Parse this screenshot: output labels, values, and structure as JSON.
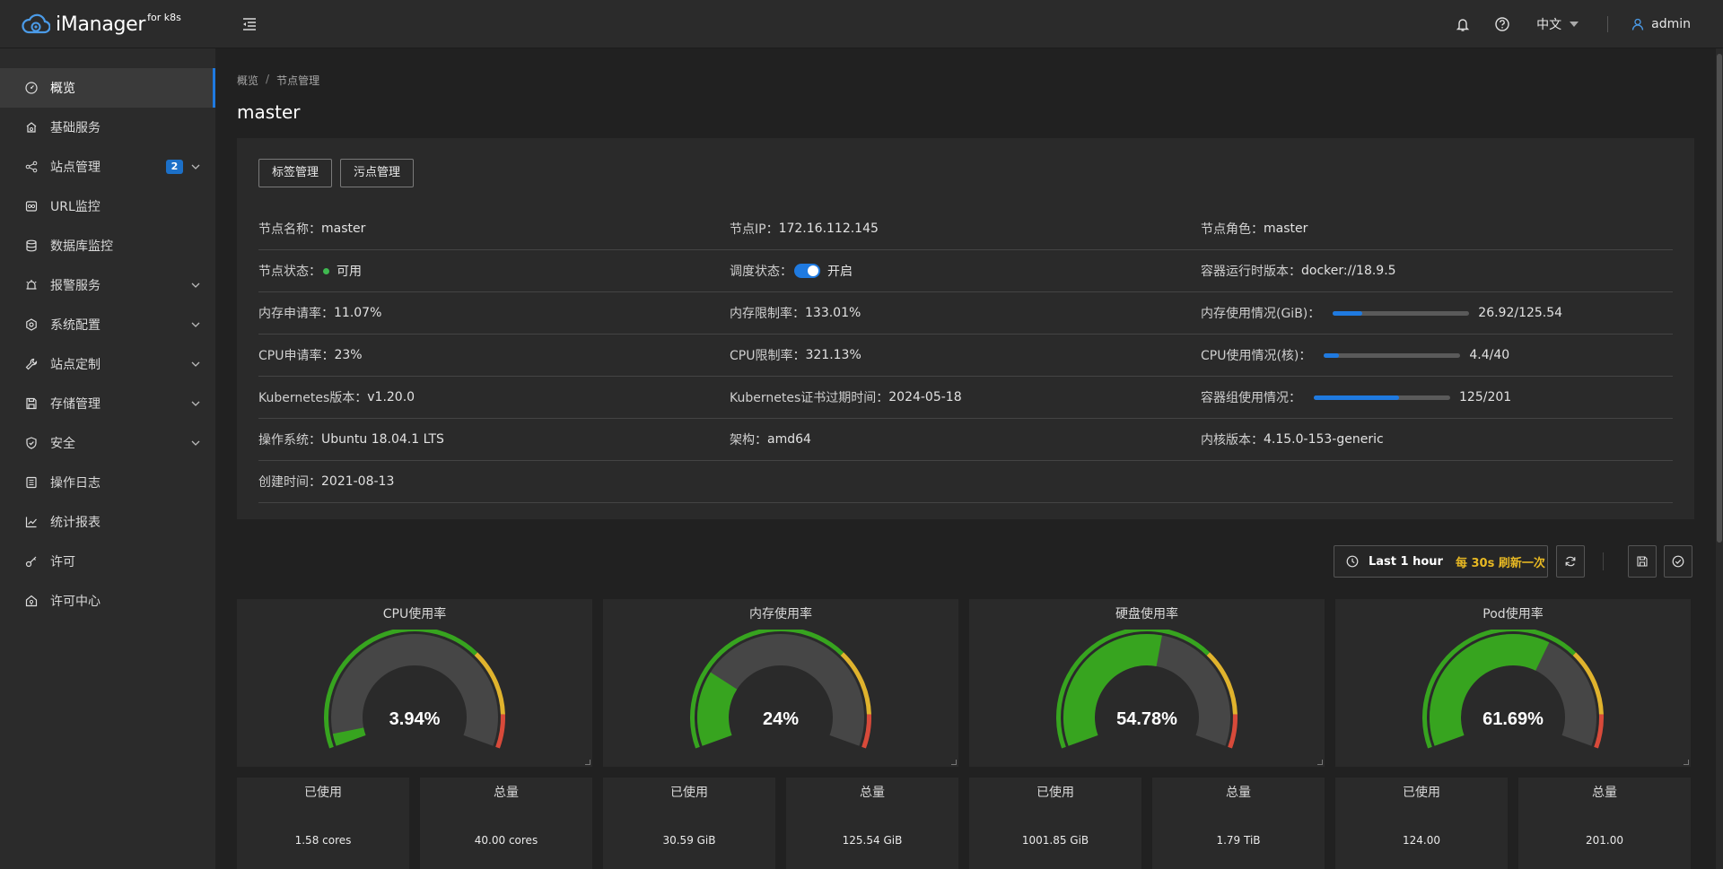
{
  "app": {
    "name": "iManager",
    "name_sup": "for k8s"
  },
  "header": {
    "language": "中文",
    "user": "admin"
  },
  "sidebar": {
    "items": [
      {
        "label": "概览",
        "icon": "dashboard-icon"
      },
      {
        "label": "基础服务",
        "icon": "service-icon"
      },
      {
        "label": "站点管理",
        "icon": "site-icon",
        "badge": "2"
      },
      {
        "label": "URL监控",
        "icon": "url-icon"
      },
      {
        "label": "数据库监控",
        "icon": "database-icon"
      },
      {
        "label": "报警服务",
        "icon": "alarm-icon"
      },
      {
        "label": "系统配置",
        "icon": "settings-icon"
      },
      {
        "label": "站点定制",
        "icon": "tool-icon"
      },
      {
        "label": "存储管理",
        "icon": "storage-icon"
      },
      {
        "label": "安全",
        "icon": "shield-icon"
      },
      {
        "label": "操作日志",
        "icon": "log-icon"
      },
      {
        "label": "统计报表",
        "icon": "chart-icon"
      },
      {
        "label": "许可",
        "icon": "key-icon"
      },
      {
        "label": "许可中心",
        "icon": "license-center-icon"
      }
    ]
  },
  "breadcrumb": {
    "home": "概览",
    "sep": "/",
    "current": "节点管理"
  },
  "page": {
    "title": "master"
  },
  "buttons": {
    "labels": "标签管理",
    "taints": "污点管理"
  },
  "info": {
    "node_name": {
      "k": "节点名称：",
      "v": "master"
    },
    "node_ip": {
      "k": "节点IP：",
      "v": "172.16.112.145"
    },
    "node_role": {
      "k": "节点角色：",
      "v": "master"
    },
    "node_status": {
      "k": "节点状态：",
      "v": "可用"
    },
    "schedule_status": {
      "k": "调度状态：",
      "v": "开启"
    },
    "runtime": {
      "k": "容器运行时版本：",
      "v": "docker://18.9.5"
    },
    "mem_request": {
      "k": "内存申请率：",
      "v": "11.07%"
    },
    "mem_limit": {
      "k": "内存限制率：",
      "v": "133.01%"
    },
    "mem_usage": {
      "k": "内存使用情况(GiB)：",
      "v": "26.92/125.54",
      "fraction": 0.2144
    },
    "cpu_request": {
      "k": "CPU申请率：",
      "v": "23%"
    },
    "cpu_limit": {
      "k": "CPU限制率：",
      "v": "321.13%"
    },
    "cpu_usage": {
      "k": "CPU使用情况(核)：",
      "v": "4.4/40",
      "fraction": 0.11
    },
    "k8s_version": {
      "k": "Kubernetes版本：",
      "v": "v1.20.0"
    },
    "cert_expiry": {
      "k": "Kubernetes证书过期时间：",
      "v": "2024-05-18"
    },
    "pod_usage": {
      "k": "容器组使用情况：",
      "v": "125/201",
      "fraction": 0.6219
    },
    "os": {
      "k": "操作系统：",
      "v": "Ubuntu 18.04.1 LTS"
    },
    "arch": {
      "k": "架构：",
      "v": "amd64"
    },
    "kernel": {
      "k": "内核版本：",
      "v": "4.15.0-153-generic"
    },
    "created": {
      "k": "创建时间：",
      "v": "2021-08-13"
    }
  },
  "toolbar": {
    "time_range": "Last 1 hour",
    "refresh": "每 30s 刷新一次"
  },
  "gauges": [
    {
      "title": "CPU使用率",
      "value": 3.94,
      "label": "3.94%"
    },
    {
      "title": "内存使用率",
      "value": 24,
      "label": "24%"
    },
    {
      "title": "硬盘使用率",
      "value": 54.78,
      "label": "54.78%"
    },
    {
      "title": "Pod使用率",
      "value": 61.69,
      "label": "61.69%"
    }
  ],
  "stats": [
    {
      "title": "已使用",
      "value": "1.58 cores"
    },
    {
      "title": "总量",
      "value": "40.00 cores"
    },
    {
      "title": "已使用",
      "value": "30.59 GiB"
    },
    {
      "title": "总量",
      "value": "125.54 GiB"
    },
    {
      "title": "已使用",
      "value": "1001.85 GiB"
    },
    {
      "title": "总量",
      "value": "1.79 TiB"
    },
    {
      "title": "已使用",
      "value": "124.00"
    },
    {
      "title": "总量",
      "value": "201.00"
    }
  ],
  "colors": {
    "accent": "#1f7ae0",
    "gauge_green": "#37a41f",
    "gauge_yellow": "#e0b32d",
    "gauge_red": "#d84a3a",
    "warning_text": "#e8b923",
    "status_ok": "#3fb950"
  }
}
